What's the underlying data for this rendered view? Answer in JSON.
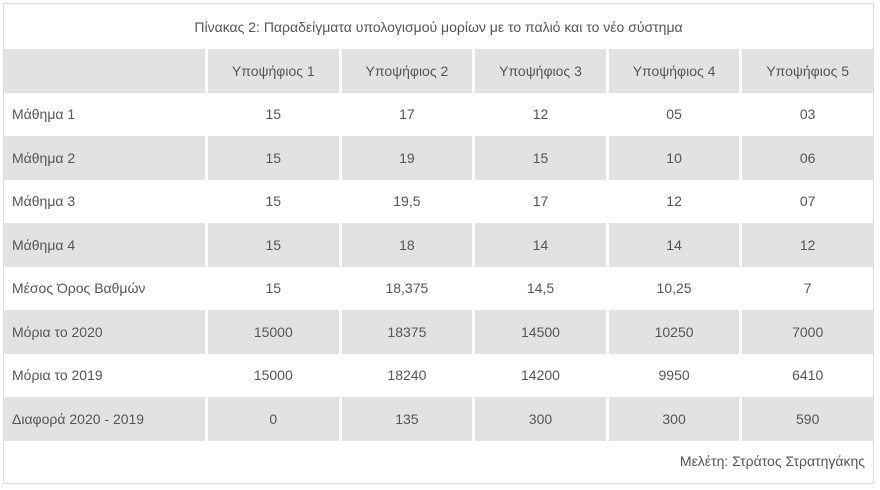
{
  "title": "Πίνακας 2: Παραδείγματα υπολογισμού μορίων με το παλιό και το νέο σύστημα",
  "columns": [
    "",
    "Υποψήφιος 1",
    "Υποψήφιος 2",
    "Υποψήφιος 3",
    "Υποψήφιος 4",
    "Υποψήφιος 5"
  ],
  "rows": [
    {
      "label": "Μάθημα 1",
      "values": [
        "15",
        "17",
        "12",
        "05",
        "03"
      ]
    },
    {
      "label": "Μάθημα 2",
      "values": [
        "15",
        "19",
        "15",
        "10",
        "06"
      ]
    },
    {
      "label": "Μάθημα 3",
      "values": [
        "15",
        "19,5",
        "17",
        "12",
        "07"
      ]
    },
    {
      "label": "Μάθημα 4",
      "values": [
        "15",
        "18",
        "14",
        "14",
        "12"
      ]
    },
    {
      "label": "Μέσος Όρος Βαθμών",
      "values": [
        "15",
        "18,375",
        "14,5",
        "10,25",
        "7"
      ]
    },
    {
      "label": "Μόρια το 2020",
      "values": [
        "15000",
        "18375",
        "14500",
        "10250",
        "7000"
      ]
    },
    {
      "label": "Μόρια το 2019",
      "values": [
        "15000",
        "18240",
        "14200",
        "9950",
        "6410"
      ]
    },
    {
      "label": "Διαφορά 2020 - 2019",
      "values": [
        "0",
        "135",
        "300",
        "300",
        "590"
      ]
    }
  ],
  "footer": "Μελέτη: Στράτος Στρατηγάκης",
  "colors": {
    "header_bg": "#e2e2e2",
    "text": "#555555"
  }
}
